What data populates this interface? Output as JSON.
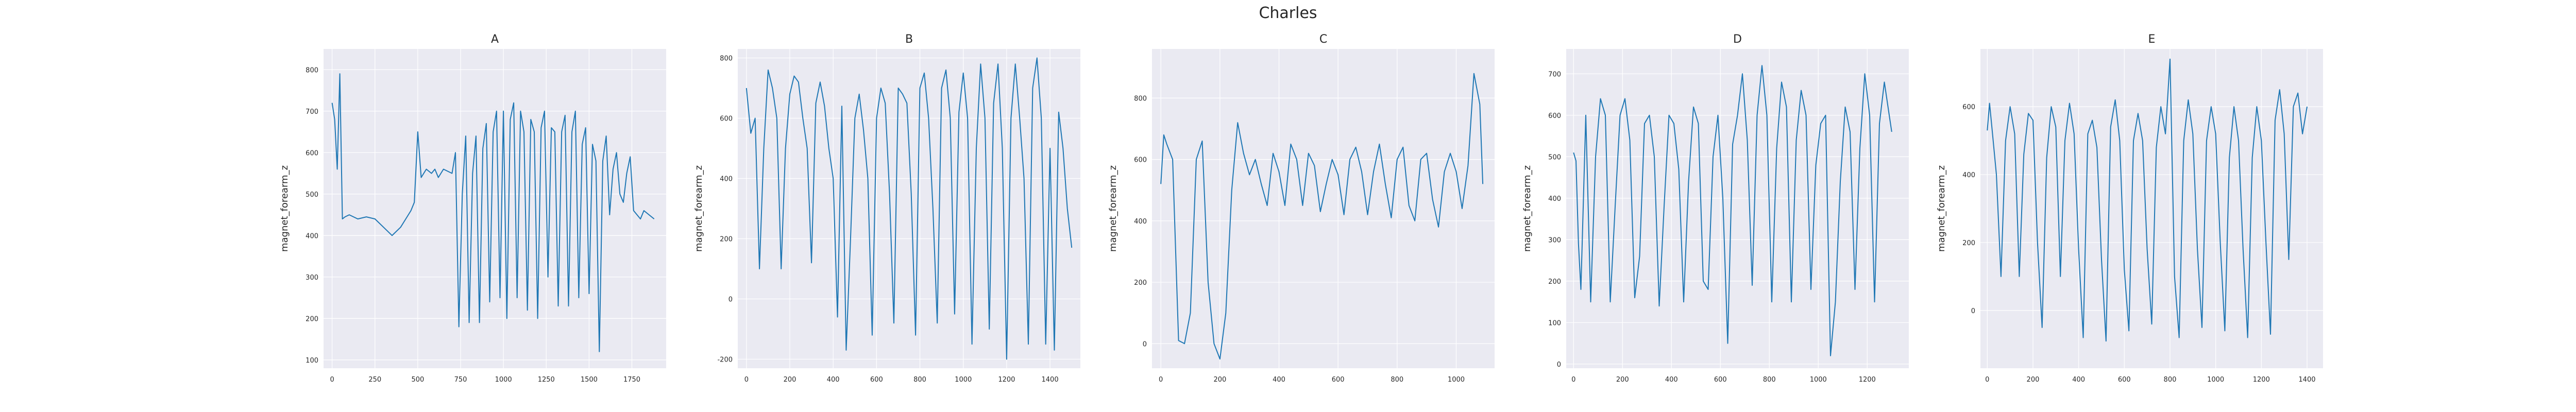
{
  "figure": {
    "title": "Charles"
  },
  "chart_data": [
    {
      "type": "line",
      "title": "A",
      "xlabel": "",
      "ylabel": "magnet_forearm_z",
      "xlim": [
        -50,
        1950
      ],
      "ylim": [
        80,
        850
      ],
      "xticks": [
        0,
        250,
        500,
        750,
        1000,
        1250,
        1500,
        1750
      ],
      "yticks": [
        100,
        200,
        300,
        400,
        500,
        600,
        700,
        800
      ],
      "grid": true,
      "color": "#1f77b4",
      "series": [
        {
          "x": [
            0,
            15,
            30,
            45,
            60,
            75,
            100,
            150,
            200,
            250,
            300,
            350,
            400,
            430,
            460,
            480,
            500,
            520,
            550,
            580,
            600,
            620,
            650,
            700,
            720,
            740,
            760,
            780,
            800,
            820,
            840,
            860,
            880,
            900,
            920,
            940,
            960,
            980,
            1000,
            1020,
            1040,
            1060,
            1080,
            1100,
            1120,
            1140,
            1160,
            1180,
            1200,
            1220,
            1240,
            1260,
            1280,
            1300,
            1320,
            1340,
            1360,
            1380,
            1400,
            1420,
            1440,
            1460,
            1480,
            1500,
            1520,
            1540,
            1560,
            1580,
            1600,
            1620,
            1640,
            1660,
            1680,
            1700,
            1720,
            1740,
            1760,
            1780,
            1800,
            1820,
            1850,
            1880
          ],
          "y": [
            720,
            680,
            560,
            790,
            440,
            445,
            450,
            440,
            445,
            440,
            420,
            400,
            420,
            440,
            460,
            480,
            650,
            540,
            560,
            550,
            560,
            540,
            560,
            550,
            600,
            180,
            500,
            640,
            190,
            550,
            640,
            190,
            610,
            670,
            240,
            650,
            700,
            250,
            700,
            200,
            680,
            720,
            250,
            700,
            650,
            220,
            680,
            650,
            200,
            660,
            700,
            300,
            660,
            650,
            230,
            650,
            690,
            230,
            650,
            700,
            250,
            620,
            660,
            260,
            620,
            580,
            120,
            580,
            640,
            450,
            560,
            600,
            500,
            480,
            550,
            590,
            460,
            450,
            440,
            460,
            450,
            440
          ]
        }
      ]
    },
    {
      "type": "line",
      "title": "B",
      "xlabel": "",
      "ylabel": "magnet_forearm_z",
      "xlim": [
        -40,
        1540
      ],
      "ylim": [
        -230,
        830
      ],
      "xticks": [
        0,
        200,
        400,
        600,
        800,
        1000,
        1200,
        1400
      ],
      "yticks": [
        -200,
        0,
        200,
        400,
        600,
        800
      ],
      "grid": true,
      "color": "#1f77b4",
      "series": [
        {
          "x": [
            0,
            20,
            40,
            60,
            80,
            100,
            120,
            140,
            160,
            180,
            200,
            220,
            240,
            260,
            280,
            300,
            320,
            340,
            360,
            380,
            400,
            420,
            440,
            460,
            480,
            500,
            520,
            540,
            560,
            580,
            600,
            620,
            640,
            660,
            680,
            700,
            720,
            740,
            760,
            780,
            800,
            820,
            840,
            860,
            880,
            900,
            920,
            940,
            960,
            980,
            1000,
            1020,
            1040,
            1060,
            1080,
            1100,
            1120,
            1140,
            1160,
            1180,
            1200,
            1220,
            1240,
            1260,
            1280,
            1300,
            1320,
            1340,
            1360,
            1380,
            1400,
            1420,
            1440,
            1460,
            1480,
            1500
          ],
          "y": [
            700,
            550,
            600,
            100,
            500,
            760,
            700,
            600,
            100,
            500,
            680,
            740,
            720,
            600,
            500,
            120,
            650,
            720,
            640,
            500,
            400,
            -60,
            640,
            -170,
            200,
            600,
            680,
            560,
            400,
            -120,
            600,
            700,
            650,
            350,
            -80,
            700,
            680,
            650,
            350,
            -120,
            700,
            750,
            600,
            300,
            -80,
            700,
            760,
            600,
            -50,
            620,
            750,
            600,
            -150,
            500,
            780,
            600,
            -100,
            650,
            780,
            500,
            -200,
            600,
            780,
            600,
            400,
            -150,
            700,
            800,
            600,
            -150,
            500,
            -170,
            620,
            500,
            300,
            170
          ]
        }
      ]
    },
    {
      "type": "line",
      "title": "C",
      "xlabel": "",
      "ylabel": "magnet_forearm_z",
      "xlim": [
        -30,
        1130
      ],
      "ylim": [
        -80,
        960
      ],
      "xticks": [
        0,
        200,
        400,
        600,
        800,
        1000
      ],
      "yticks": [
        0,
        200,
        400,
        600,
        800
      ],
      "grid": true,
      "color": "#1f77b4",
      "series": [
        {
          "x": [
            0,
            10,
            20,
            40,
            60,
            80,
            100,
            120,
            140,
            160,
            180,
            200,
            220,
            240,
            260,
            280,
            300,
            320,
            340,
            360,
            380,
            400,
            420,
            440,
            460,
            480,
            500,
            520,
            540,
            560,
            580,
            600,
            620,
            640,
            660,
            680,
            700,
            720,
            740,
            760,
            780,
            800,
            820,
            840,
            860,
            880,
            900,
            920,
            940,
            960,
            980,
            1000,
            1020,
            1040,
            1060,
            1080,
            1090
          ],
          "y": [
            520,
            680,
            650,
            600,
            10,
            0,
            100,
            600,
            660,
            200,
            0,
            -50,
            100,
            500,
            720,
            620,
            550,
            600,
            520,
            450,
            620,
            560,
            450,
            650,
            600,
            450,
            620,
            580,
            430,
            520,
            600,
            550,
            420,
            600,
            640,
            560,
            420,
            560,
            650,
            520,
            410,
            600,
            640,
            450,
            400,
            600,
            620,
            470,
            380,
            560,
            620,
            560,
            440,
            580,
            880,
            780,
            520
          ]
        }
      ]
    },
    {
      "type": "line",
      "title": "D",
      "xlabel": "",
      "ylabel": "magnet_forearm_z",
      "xlim": [
        -30,
        1370
      ],
      "ylim": [
        -10,
        760
      ],
      "xticks": [
        0,
        200,
        400,
        600,
        800,
        1000,
        1200
      ],
      "yticks": [
        0,
        100,
        200,
        300,
        400,
        500,
        600,
        700
      ],
      "grid": true,
      "color": "#1f77b4",
      "series": [
        {
          "x": [
            0,
            10,
            20,
            30,
            50,
            70,
            90,
            110,
            130,
            150,
            170,
            190,
            210,
            230,
            250,
            270,
            290,
            310,
            330,
            350,
            370,
            390,
            410,
            430,
            450,
            470,
            490,
            510,
            530,
            550,
            570,
            590,
            610,
            630,
            650,
            670,
            690,
            710,
            730,
            750,
            770,
            790,
            810,
            830,
            850,
            870,
            890,
            910,
            930,
            950,
            970,
            990,
            1010,
            1030,
            1050,
            1070,
            1090,
            1110,
            1130,
            1150,
            1170,
            1190,
            1210,
            1230,
            1250,
            1270,
            1290,
            1300
          ],
          "y": [
            510,
            490,
            290,
            180,
            600,
            150,
            500,
            640,
            600,
            150,
            380,
            600,
            640,
            540,
            160,
            260,
            580,
            600,
            500,
            140,
            380,
            600,
            580,
            470,
            150,
            440,
            620,
            580,
            200,
            180,
            500,
            600,
            400,
            50,
            530,
            600,
            700,
            540,
            190,
            600,
            720,
            600,
            150,
            520,
            680,
            620,
            150,
            540,
            660,
            600,
            180,
            480,
            580,
            600,
            20,
            150,
            440,
            620,
            560,
            180,
            520,
            700,
            600,
            150,
            580,
            680,
            600,
            560
          ]
        }
      ]
    },
    {
      "type": "line",
      "title": "E",
      "xlabel": "",
      "ylabel": "magnet_forearm_z",
      "xlim": [
        -30,
        1470
      ],
      "ylim": [
        -170,
        770
      ],
      "xticks": [
        0,
        200,
        400,
        600,
        800,
        1000,
        1200,
        1400
      ],
      "yticks": [
        0,
        200,
        400,
        600
      ],
      "grid": true,
      "color": "#1f77b4",
      "series": [
        {
          "x": [
            0,
            10,
            20,
            40,
            60,
            80,
            100,
            120,
            140,
            160,
            180,
            200,
            220,
            240,
            260,
            280,
            300,
            320,
            340,
            360,
            380,
            400,
            420,
            440,
            460,
            480,
            500,
            520,
            540,
            560,
            580,
            600,
            620,
            640,
            660,
            680,
            700,
            720,
            740,
            760,
            780,
            800,
            820,
            840,
            860,
            880,
            900,
            920,
            940,
            960,
            980,
            1000,
            1020,
            1040,
            1060,
            1080,
            1100,
            1120,
            1140,
            1160,
            1180,
            1200,
            1220,
            1240,
            1260,
            1280,
            1300,
            1320,
            1340,
            1360,
            1380,
            1400
          ],
          "y": [
            530,
            610,
            540,
            400,
            100,
            500,
            600,
            520,
            100,
            460,
            580,
            560,
            200,
            -50,
            450,
            600,
            540,
            100,
            500,
            610,
            520,
            180,
            -80,
            520,
            560,
            480,
            150,
            -90,
            540,
            620,
            500,
            120,
            -60,
            500,
            580,
            500,
            180,
            -40,
            480,
            600,
            520,
            740,
            100,
            -80,
            500,
            620,
            520,
            180,
            -50,
            500,
            600,
            520,
            200,
            -60,
            450,
            600,
            500,
            180,
            -80,
            450,
            600,
            500,
            200,
            -70,
            560,
            650,
            520,
            150,
            600,
            640,
            520,
            600
          ]
        }
      ]
    }
  ]
}
